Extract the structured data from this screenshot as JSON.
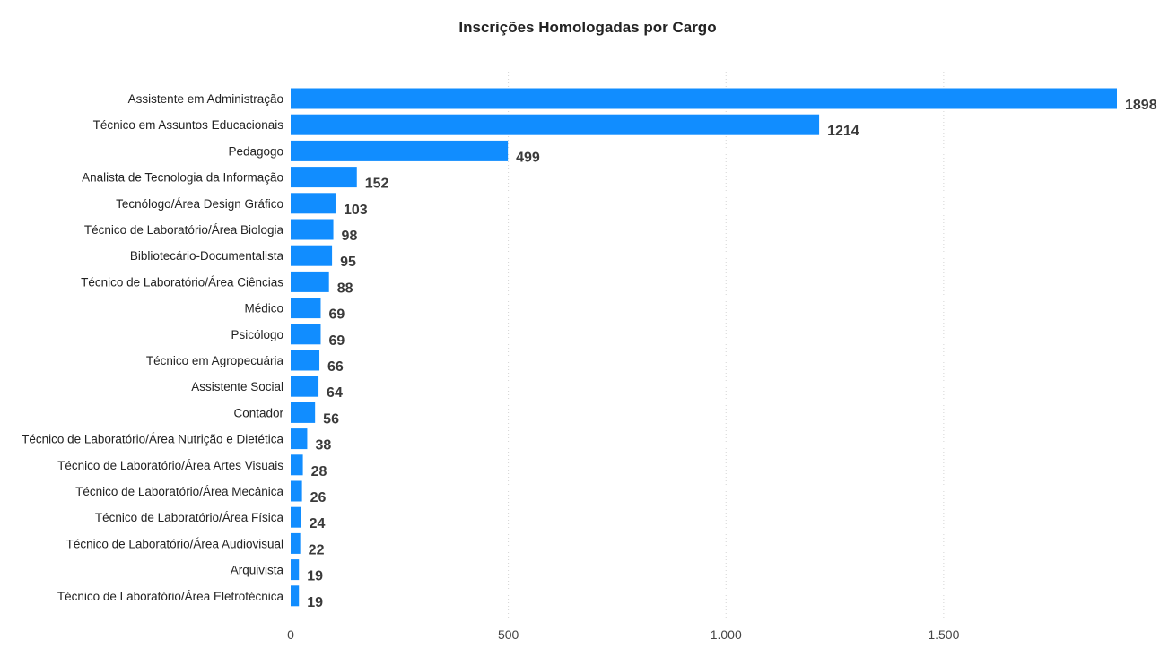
{
  "chart_data": {
    "type": "bar",
    "orientation": "horizontal",
    "title": "Inscrições Homologadas por Cargo",
    "xlabel": "",
    "ylabel": "",
    "categories": [
      "Assistente em Administração",
      "Técnico em Assuntos Educacionais",
      "Pedagogo",
      "Analista de Tecnologia da Informação",
      "Tecnólogo/Área Design Gráfico",
      "Técnico de Laboratório/Área Biologia",
      "Bibliotecário-Documentalista",
      "Técnico de Laboratório/Área Ciências",
      "Médico",
      "Psicólogo",
      "Técnico em Agropecuária",
      "Assistente Social",
      "Contador",
      "Técnico de Laboratório/Área Nutrição e Dietética",
      "Técnico de Laboratório/Área Artes Visuais",
      "Técnico de Laboratório/Área Mecânica",
      "Técnico de Laboratório/Área Física",
      "Técnico de Laboratório/Área Audiovisual",
      "Arquivista",
      "Técnico de Laboratório/Área Eletrotécnica"
    ],
    "values": [
      1898,
      1214,
      499,
      152,
      103,
      98,
      95,
      88,
      69,
      69,
      66,
      64,
      56,
      38,
      28,
      26,
      24,
      22,
      19,
      19
    ],
    "xticks": [
      0,
      500,
      1000,
      1500
    ],
    "xtick_labels": [
      "0",
      "500",
      "1.000",
      "1.500"
    ],
    "xlim": [
      0,
      1898
    ],
    "grid": true,
    "legend": "none",
    "bar_color": "#118DFF"
  }
}
